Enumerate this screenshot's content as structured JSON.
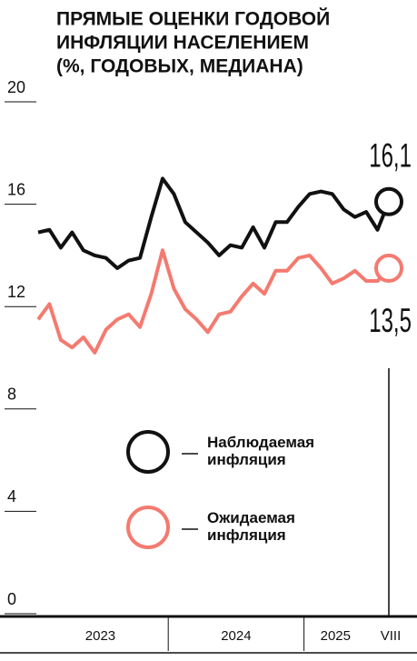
{
  "chart_data": {
    "type": "line",
    "title": [
      "ПРЯМЫЕ ОЦЕНКИ ГОДОВОЙ",
      "ИНФЛЯЦИИ НАСЕЛЕНИЕМ",
      "(%, ГОДОВЫХ, МЕДИАНА)"
    ],
    "categories": [
      null,
      null,
      null,
      null,
      null,
      null,
      null,
      null,
      null,
      null,
      null,
      null,
      null,
      null,
      null,
      null,
      null,
      null,
      null,
      null,
      null,
      null,
      null,
      null,
      null,
      null,
      null,
      null,
      null,
      null,
      null,
      "VIII"
    ],
    "x_groups": [
      {
        "label": "2023",
        "start": 0,
        "end": 11
      },
      {
        "label": "2024",
        "start": 12,
        "end": 23
      },
      {
        "label": "2025",
        "start": 24,
        "end": 31
      }
    ],
    "series": [
      {
        "name": "Наблюдаемая инфляция",
        "color": "#111111",
        "values": [
          14.9,
          15.0,
          14.3,
          14.9,
          14.2,
          14.0,
          13.9,
          13.5,
          13.8,
          13.9,
          15.5,
          17.0,
          16.4,
          15.3,
          14.9,
          14.5,
          14.0,
          14.4,
          14.3,
          15.1,
          14.3,
          15.3,
          15.3,
          15.9,
          16.4,
          16.5,
          16.4,
          15.8,
          15.5,
          15.7,
          15.0,
          16.1
        ],
        "value_labels": [
          null,
          null,
          null,
          null,
          null,
          null,
          null,
          null,
          null,
          null,
          null,
          null,
          null,
          null,
          null,
          null,
          null,
          null,
          null,
          null,
          null,
          null,
          null,
          null,
          null,
          null,
          null,
          null,
          null,
          null,
          null,
          "16,1"
        ]
      },
      {
        "name": "Ожидаемая инфляция",
        "color": "#f47a70",
        "values": [
          11.5,
          12.1,
          10.7,
          10.4,
          10.8,
          10.2,
          11.1,
          11.5,
          11.7,
          11.2,
          12.5,
          14.2,
          12.7,
          11.9,
          11.5,
          11.0,
          11.7,
          11.8,
          12.4,
          12.9,
          12.5,
          13.4,
          13.4,
          13.9,
          14.0,
          13.5,
          12.9,
          13.1,
          13.4,
          13.0,
          13.0,
          13.5
        ],
        "value_labels": [
          null,
          null,
          null,
          null,
          null,
          null,
          null,
          null,
          null,
          null,
          null,
          null,
          null,
          null,
          null,
          null,
          null,
          null,
          null,
          null,
          null,
          null,
          null,
          null,
          null,
          null,
          null,
          null,
          null,
          null,
          null,
          "13,5"
        ]
      }
    ],
    "ylim": [
      0,
      20
    ],
    "yticks": [
      0,
      4,
      8,
      12,
      16,
      20
    ],
    "grid": false
  }
}
